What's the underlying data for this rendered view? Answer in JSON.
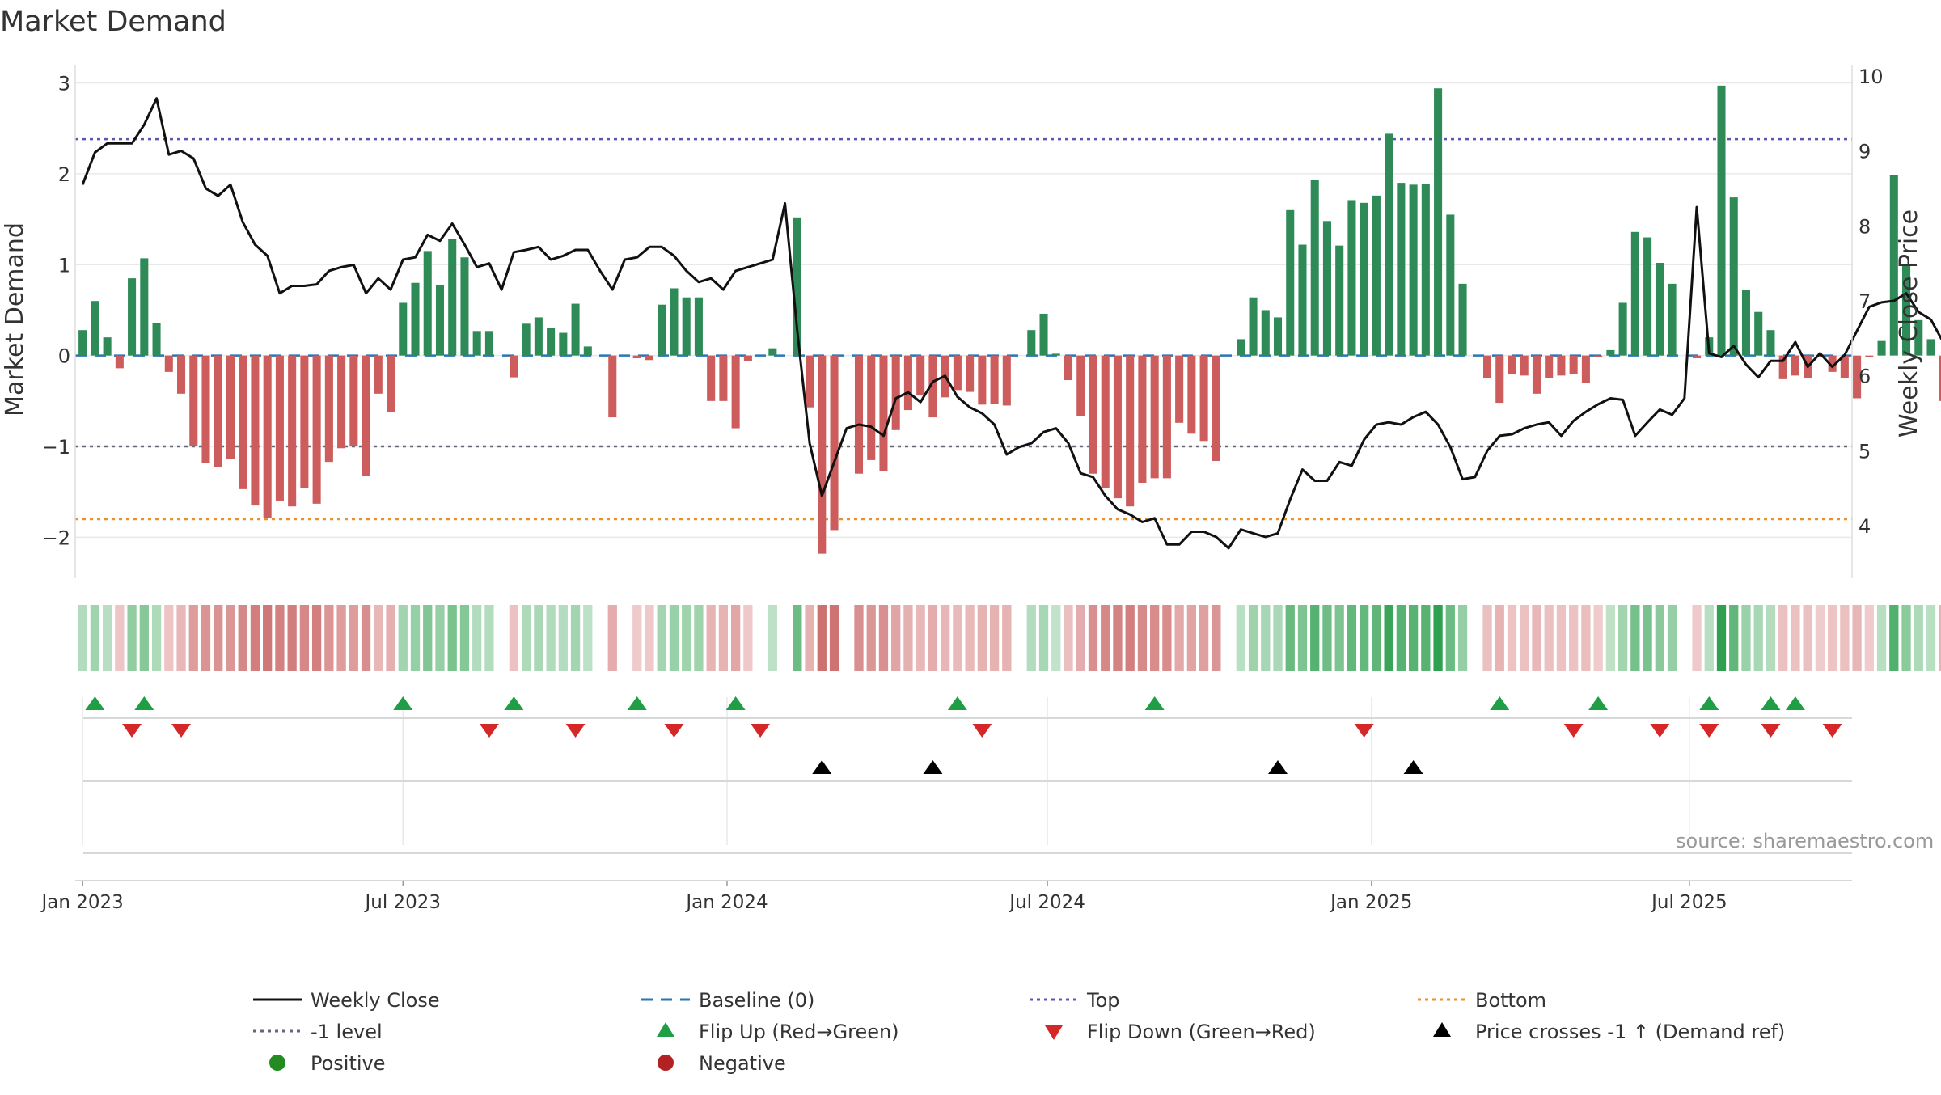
{
  "title": "Market Demand",
  "source": "source: sharemaestro.com",
  "colors": {
    "positive": "#2e8b57",
    "negative": "#cd5c5c",
    "close": "#111111",
    "top": "#5b57b0",
    "bottom": "#e8902a",
    "minus1": "#666677",
    "baseline": "#2a75b3",
    "flip_up": "#1f9e45",
    "flip_down": "#d62728",
    "cross": "#000000",
    "dot_pos": "#228b22",
    "dot_neg": "#b22222"
  },
  "chart_data": {
    "type": "bar",
    "title": "Market Demand",
    "ylabel": "Market Demand",
    "y2label": "Weekly Close Price",
    "ylim": [
      -2.45,
      3.2
    ],
    "y2lim": [
      3.3,
      10.15
    ],
    "yticks": [
      3,
      2,
      1,
      0,
      -1,
      -2
    ],
    "ytick_labels": [
      "3",
      "2",
      "1",
      "0",
      "−1",
      "−2"
    ],
    "y2ticks": [
      10,
      9,
      8,
      7,
      6,
      5,
      4
    ],
    "y2tick_labels": [
      "10",
      "9",
      "8",
      "7",
      "6",
      "5",
      "4"
    ],
    "xlim": [
      -0.6,
      143.6
    ],
    "xticks": [
      0,
      26,
      52.3,
      78.3,
      104.6,
      130.4
    ],
    "xtick_labels": [
      "Jan 2023",
      "Jul 2023",
      "Jan 2024",
      "Jul 2024",
      "Jan 2025",
      "Jul 2025"
    ],
    "reference_lines": {
      "top": 2.38,
      "bottom": -1.8,
      "minus1": -1.0,
      "baseline": 0
    },
    "demand": [
      0.28,
      0.6,
      0.2,
      -0.14,
      0.85,
      1.07,
      0.36,
      -0.18,
      -0.42,
      -1.0,
      -1.18,
      -1.23,
      -1.14,
      -1.47,
      -1.65,
      -1.79,
      -1.6,
      -1.66,
      -1.46,
      -1.63,
      -1.17,
      -1.02,
      -1.0,
      -1.32,
      -0.42,
      -0.62,
      0.58,
      0.8,
      1.15,
      0.78,
      1.28,
      1.08,
      0.27,
      0.27,
      0.0,
      -0.24,
      0.35,
      0.42,
      0.3,
      0.25,
      0.57,
      0.1,
      0.0,
      -0.68,
      0.0,
      -0.03,
      -0.05,
      0.56,
      0.74,
      0.64,
      0.64,
      -0.5,
      -0.5,
      -0.8,
      -0.06,
      0.0,
      0.08,
      0.0,
      1.52,
      -0.57,
      -2.18,
      -1.92,
      0.0,
      -1.3,
      -1.15,
      -1.27,
      -0.82,
      -0.6,
      -0.44,
      -0.68,
      -0.46,
      -0.38,
      -0.4,
      -0.54,
      -0.53,
      -0.55,
      0.0,
      0.28,
      0.46,
      0.02,
      -0.27,
      -0.67,
      -1.3,
      -1.46,
      -1.57,
      -1.66,
      -1.4,
      -1.35,
      -1.35,
      -0.74,
      -0.86,
      -0.94,
      -1.16,
      0.0,
      0.18,
      0.64,
      0.5,
      0.42,
      1.6,
      1.22,
      1.93,
      1.48,
      1.21,
      1.71,
      1.68,
      1.76,
      2.44,
      1.9,
      1.88,
      1.89,
      2.94,
      1.55,
      0.79,
      0.0,
      -0.25,
      -0.52,
      -0.2,
      -0.22,
      -0.42,
      -0.25,
      -0.22,
      -0.2,
      -0.3,
      -0.02,
      0.06,
      0.58,
      1.36,
      1.3,
      1.02,
      0.79,
      0.0,
      -0.03,
      0.2,
      2.97,
      1.74,
      0.72,
      0.48,
      0.28,
      -0.26,
      -0.22,
      -0.25,
      -0.02,
      -0.18,
      -0.25,
      -0.47,
      -0.02,
      0.16,
      1.99,
      1.0,
      0.39,
      0.18,
      -0.5
    ],
    "weekly_close": [
      8.55,
      8.98,
      9.1,
      9.1,
      9.1,
      9.35,
      9.7,
      8.95,
      9.0,
      8.9,
      8.5,
      8.4,
      8.55,
      8.05,
      7.75,
      7.6,
      7.1,
      7.2,
      7.2,
      7.22,
      7.4,
      7.45,
      7.48,
      7.1,
      7.3,
      7.15,
      7.55,
      7.58,
      7.88,
      7.8,
      8.03,
      7.75,
      7.45,
      7.5,
      7.15,
      7.65,
      7.68,
      7.72,
      7.55,
      7.6,
      7.68,
      7.68,
      7.4,
      7.15,
      7.55,
      7.58,
      7.72,
      7.72,
      7.6,
      7.4,
      7.25,
      7.3,
      7.15,
      7.4,
      7.45,
      7.5,
      7.55,
      8.3,
      6.6,
      5.1,
      4.4,
      4.85,
      5.3,
      5.35,
      5.32,
      5.2,
      5.7,
      5.78,
      5.65,
      5.92,
      6.0,
      5.72,
      5.58,
      5.5,
      5.35,
      4.95,
      5.05,
      5.1,
      5.25,
      5.3,
      5.1,
      4.7,
      4.65,
      4.4,
      4.22,
      4.15,
      4.05,
      4.1,
      3.75,
      3.75,
      3.92,
      3.92,
      3.85,
      3.7,
      3.95,
      3.9,
      3.85,
      3.9,
      4.35,
      4.75,
      4.6,
      4.6,
      4.85,
      4.8,
      5.15,
      5.35,
      5.38,
      5.35,
      5.45,
      5.52,
      5.35,
      5.05,
      4.62,
      4.65,
      5.0,
      5.2,
      5.22,
      5.3,
      5.35,
      5.38,
      5.2,
      5.4,
      5.52,
      5.62,
      5.7,
      5.68,
      5.2,
      5.38,
      5.55,
      5.48,
      5.7,
      8.25,
      6.3,
      6.25,
      6.4,
      6.15,
      5.98,
      6.2,
      6.2,
      6.45,
      6.12,
      6.3,
      6.12,
      6.28,
      6.6,
      6.92,
      6.98,
      7.0,
      7.1,
      6.85,
      6.75,
      6.45
    ],
    "flip_up_weeks": [
      1,
      5,
      26,
      35,
      45,
      53,
      71,
      87,
      115,
      123,
      132,
      137,
      139
    ],
    "flip_down_weeks": [
      4,
      8,
      33,
      40,
      48,
      55,
      73,
      104,
      121,
      128,
      132,
      137,
      142
    ],
    "price_cross_weeks": [
      60,
      69,
      97,
      108
    ],
    "heat_strip": "weekly demand intensity (green = positive, red = negative)"
  },
  "legend": {
    "weekly_close": "Weekly Close",
    "baseline": "Baseline (0)",
    "top": "Top",
    "bottom": "Bottom",
    "minus1": "-1 level",
    "flip_up": "Flip Up (Red→Green)",
    "flip_down": "Flip Down (Green→Red)",
    "price_cross": "Price crosses -1 ↑ (Demand ref)",
    "positive": "Positive",
    "negative": "Negative"
  }
}
